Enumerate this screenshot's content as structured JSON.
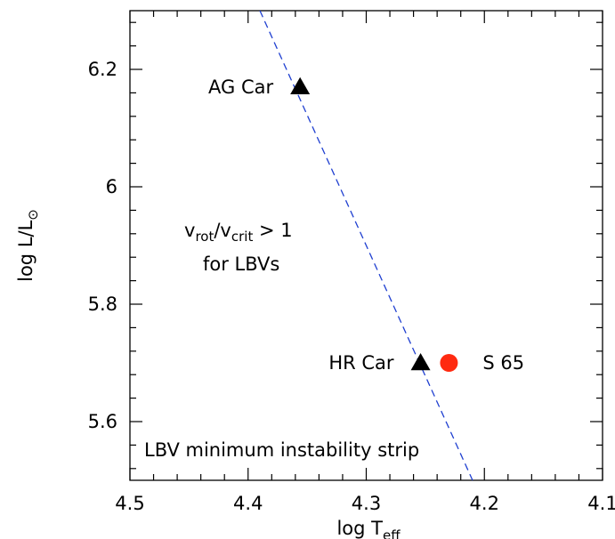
{
  "chart_data": {
    "type": "scatter",
    "xlabel": "log T",
    "xlabel_sub": "eff",
    "ylabel": "log L/L",
    "ylabel_sub": "⊙",
    "xlim": [
      4.5,
      4.1
    ],
    "ylim": [
      5.5,
      6.3
    ],
    "x_reversed": true,
    "xticks": [
      4.5,
      4.4,
      4.3,
      4.2,
      4.1
    ],
    "xtick_labels": [
      "4.5",
      "4.4",
      "4.3",
      "4.2",
      "4.1"
    ],
    "yticks": [
      5.6,
      5.8,
      6.0,
      6.2
    ],
    "ytick_labels": [
      "5.6",
      "5.8",
      "6",
      "6.2"
    ],
    "x_minor_step": 0.02,
    "y_minor_step": 0.04,
    "grid": false,
    "points": [
      {
        "name": "AG Car",
        "x": 4.356,
        "y": 6.17,
        "marker": "triangle",
        "color": "#000000"
      },
      {
        "name": "HR Car",
        "x": 4.254,
        "y": 5.7,
        "marker": "triangle",
        "color": "#000000"
      },
      {
        "name": "S 65",
        "x": 4.23,
        "y": 5.7,
        "marker": "circle",
        "color": "#ff2a10"
      }
    ],
    "line": {
      "name": "LBV minimum instability strip",
      "style": "dashed",
      "color": "#1f3fd0",
      "x": [
        4.39,
        4.21
      ],
      "y": [
        6.3,
        5.5
      ]
    },
    "annotations": {
      "vrot": "v",
      "vrot_sub": "rot",
      "slash": "/",
      "vcrit": "v",
      "vcrit_sub": "crit",
      "gt": " > 1",
      "line2": "for LBVs",
      "strip": "LBV minimum instability strip"
    }
  }
}
